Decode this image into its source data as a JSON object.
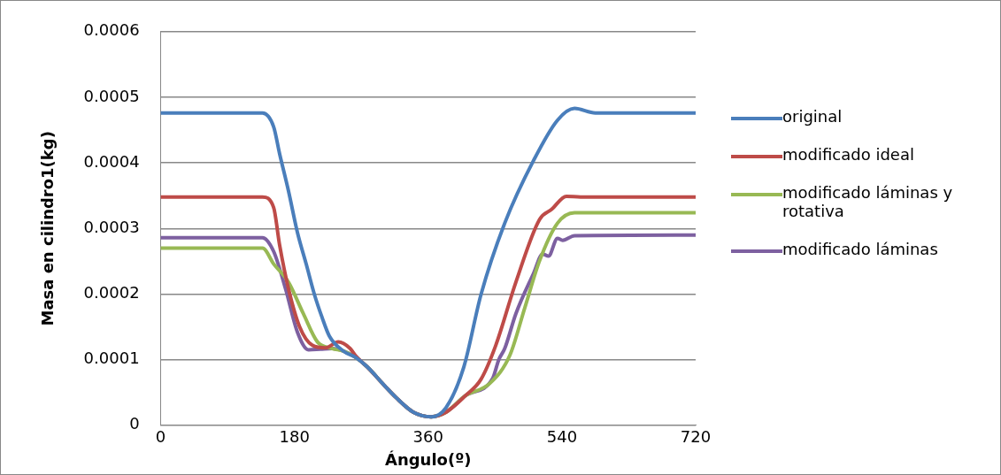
{
  "chart_data": {
    "type": "line",
    "xlabel": "Ángulo(º)",
    "ylabel": "Masa en cilindro1(kg)",
    "xlim": [
      0,
      720
    ],
    "xticks": [
      0,
      180,
      360,
      540,
      720
    ],
    "ylim": [
      0,
      0.0006
    ],
    "yticks": [
      0,
      0.0001,
      0.0002,
      0.0003,
      0.0004,
      0.0005,
      0.0006
    ],
    "grid": "y",
    "legend": "right",
    "marker": "none",
    "line_style": "solid",
    "series": [
      {
        "name": "original",
        "color": "#4a7ebb",
        "x": [
          0,
          137,
          152,
          160,
          172,
          184,
          196,
          207,
          217,
          227,
          246,
          263,
          278,
          300,
          317,
          340,
          364,
          384,
          408,
          431,
          463,
          502,
          534,
          557,
          585,
          720
        ],
        "values": [
          0.000476,
          0.000476,
          0.000455,
          0.000414,
          0.000357,
          0.000294,
          0.000245,
          0.000199,
          0.000165,
          0.000136,
          0.000113,
          0.000103,
          8.9e-05,
          6.2e-05,
          4.2e-05,
          2e-05,
          1.3e-05,
          2.7e-05,
          8.9e-05,
          0.000199,
          0.000308,
          0.000404,
          0.000465,
          0.000483,
          0.000476,
          0.000476
        ]
      },
      {
        "name": "modificado ideal",
        "color": "#be4b48",
        "x": [
          0,
          137,
          152,
          160,
          172,
          187,
          204,
          222,
          239,
          255,
          263,
          278,
          300,
          317,
          340,
          364,
          384,
          410,
          431,
          451,
          478,
          510,
          526,
          546,
          565,
          720
        ],
        "values": [
          0.000348,
          0.000348,
          0.000332,
          0.000275,
          0.000208,
          0.00015,
          0.000122,
          0.000118,
          0.000127,
          0.000117,
          0.000105,
          8.9e-05,
          6.2e-05,
          4.2e-05,
          2e-05,
          1.3e-05,
          2e-05,
          4.5e-05,
          7e-05,
          0.000122,
          0.000218,
          0.000314,
          0.000329,
          0.000349,
          0.000348,
          0.000348
        ]
      },
      {
        "name": "modificado láminas y rotativa",
        "color": "#98b954",
        "x": [
          0,
          137,
          152,
          172,
          192,
          211,
          231,
          246,
          263,
          278,
          300,
          317,
          340,
          364,
          384,
          410,
          443,
          470,
          490,
          510,
          534,
          557,
          720
        ],
        "values": [
          0.00027,
          0.00027,
          0.000246,
          0.000218,
          0.00017,
          0.000127,
          0.000117,
          0.000113,
          0.000103,
          8.9e-05,
          6.2e-05,
          4.2e-05,
          2e-05,
          1.3e-05,
          2e-05,
          4.5e-05,
          6.4e-05,
          0.000107,
          0.000179,
          0.000251,
          0.000308,
          0.000324,
          0.000324
        ]
      },
      {
        "name": "modificado láminas",
        "color": "#7d60a0",
        "x": [
          0,
          137,
          152,
          168,
          184,
          199,
          215,
          231,
          246,
          263,
          278,
          300,
          317,
          340,
          364,
          384,
          410,
          447,
          455,
          463,
          478,
          502,
          514,
          522,
          534,
          541,
          557,
          720
        ],
        "values": [
          0.000286,
          0.000286,
          0.000265,
          0.000208,
          0.000142,
          0.000115,
          0.000116,
          0.000117,
          0.000113,
          0.000103,
          8.9e-05,
          6.2e-05,
          4.2e-05,
          2e-05,
          1.3e-05,
          2e-05,
          4.5e-05,
          7.2e-05,
          0.0001,
          0.000117,
          0.00017,
          0.000232,
          0.000261,
          0.000258,
          0.000285,
          0.000282,
          0.000289,
          0.00029
        ]
      }
    ]
  }
}
